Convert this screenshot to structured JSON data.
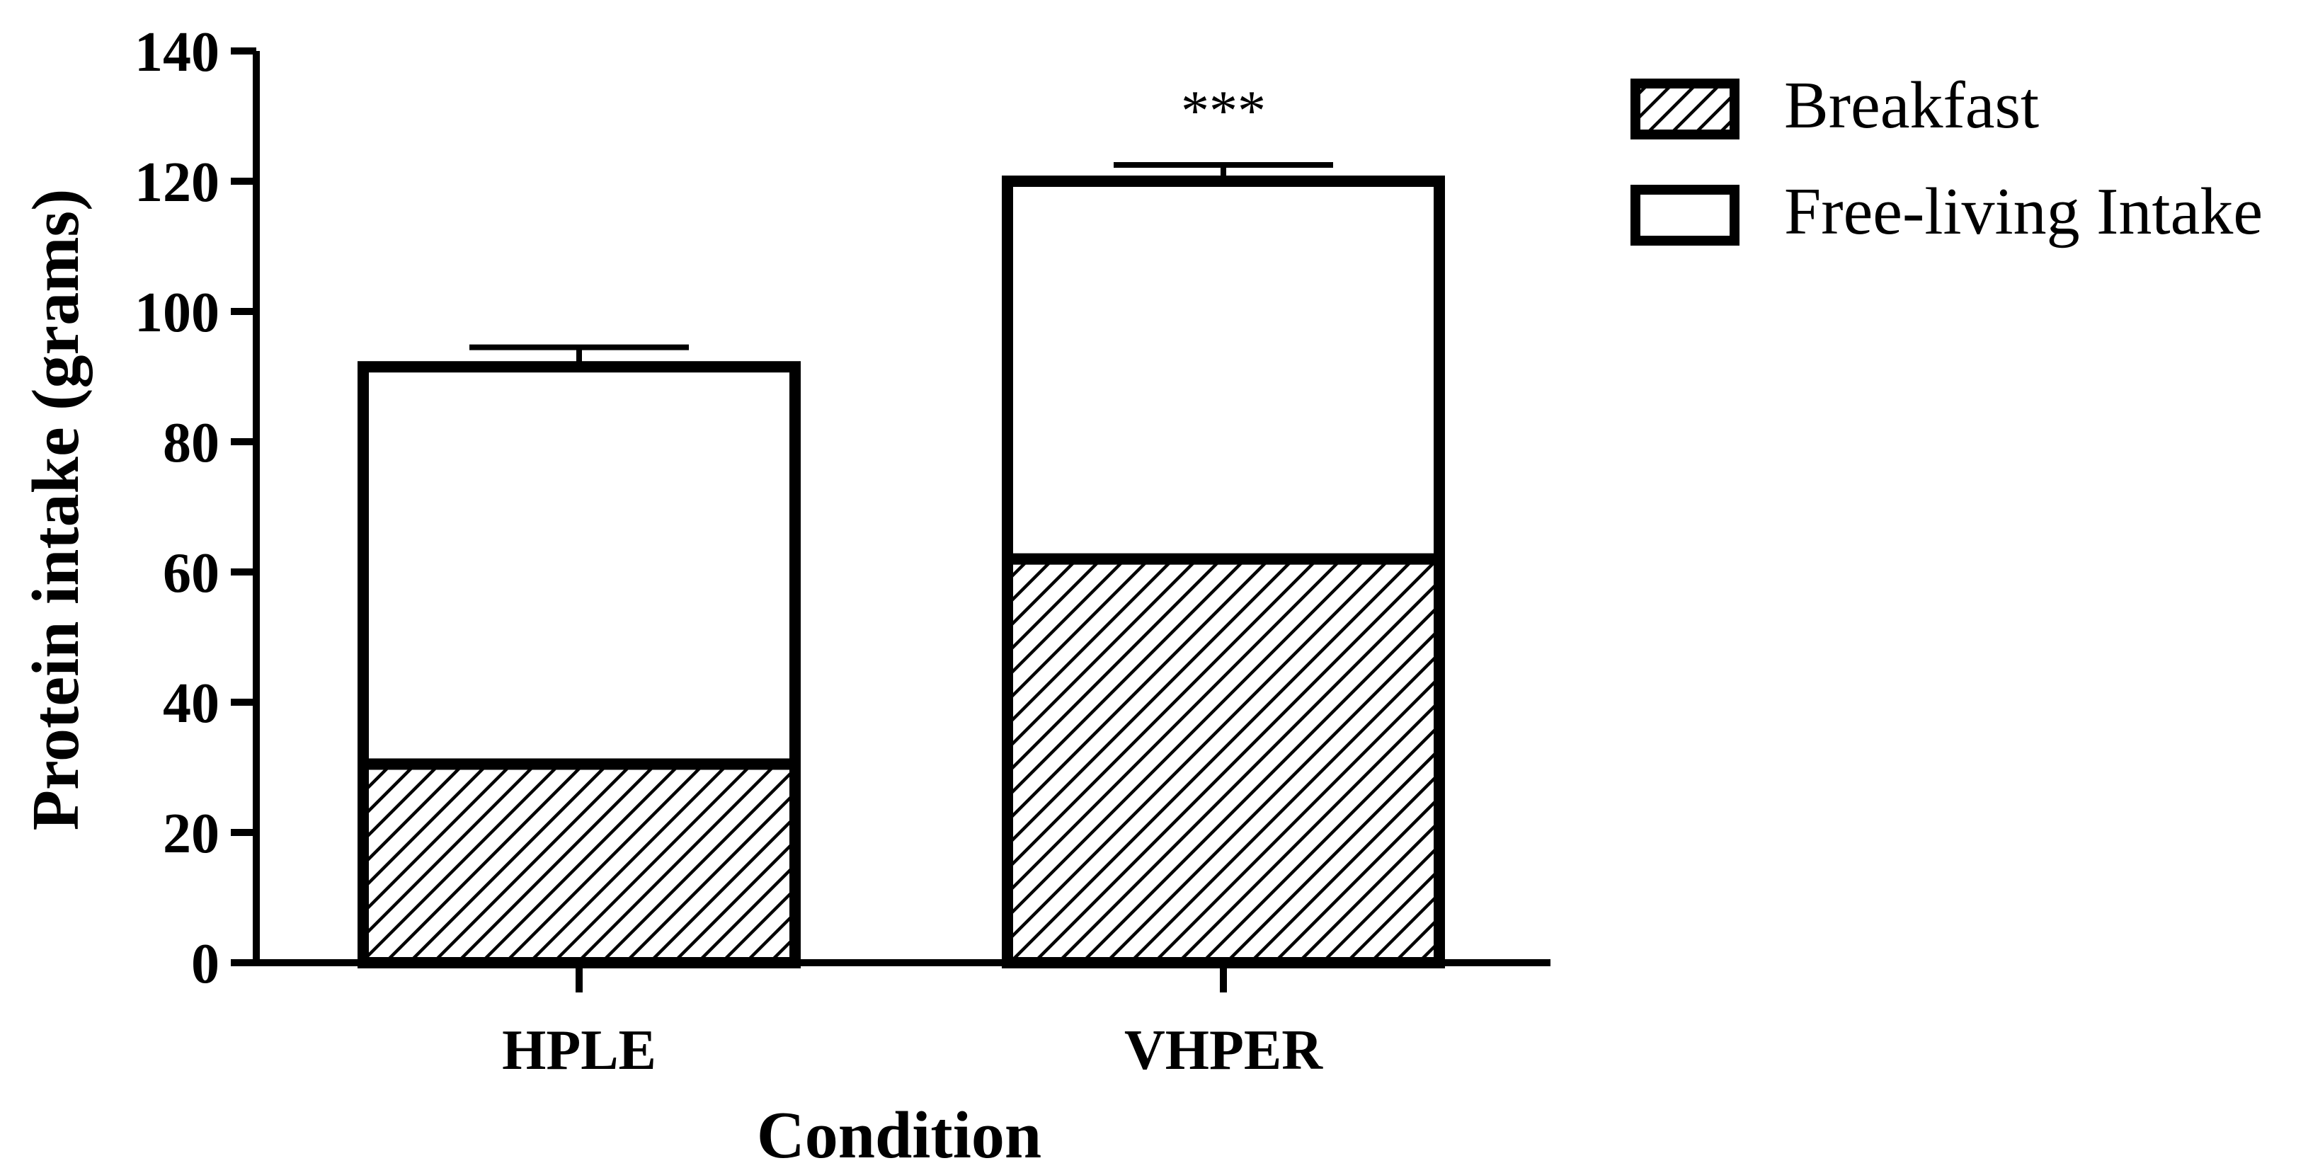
{
  "chart_data": {
    "type": "bar",
    "stacked": true,
    "title": "",
    "xlabel": "Condition",
    "ylabel": "Protein intake (grams)",
    "ylim": [
      0,
      140
    ],
    "yticks": [
      0,
      20,
      40,
      60,
      80,
      100,
      120,
      140
    ],
    "categories": [
      "HPLE",
      "VHPER"
    ],
    "series": [
      {
        "name": "Breakfast",
        "values": [
          30.5,
          62
        ],
        "error": [
          0.8,
          0.8
        ],
        "pattern": "diagonal-hatch"
      },
      {
        "name": "Free-living Intake",
        "values": [
          61,
          58
        ],
        "error": [
          3,
          2.5
        ],
        "pattern": "none"
      }
    ],
    "totals": [
      91.5,
      120
    ],
    "annotations": [
      {
        "category": "VHPER",
        "text": "***"
      }
    ],
    "legend_position": "top-right",
    "grid": false
  }
}
